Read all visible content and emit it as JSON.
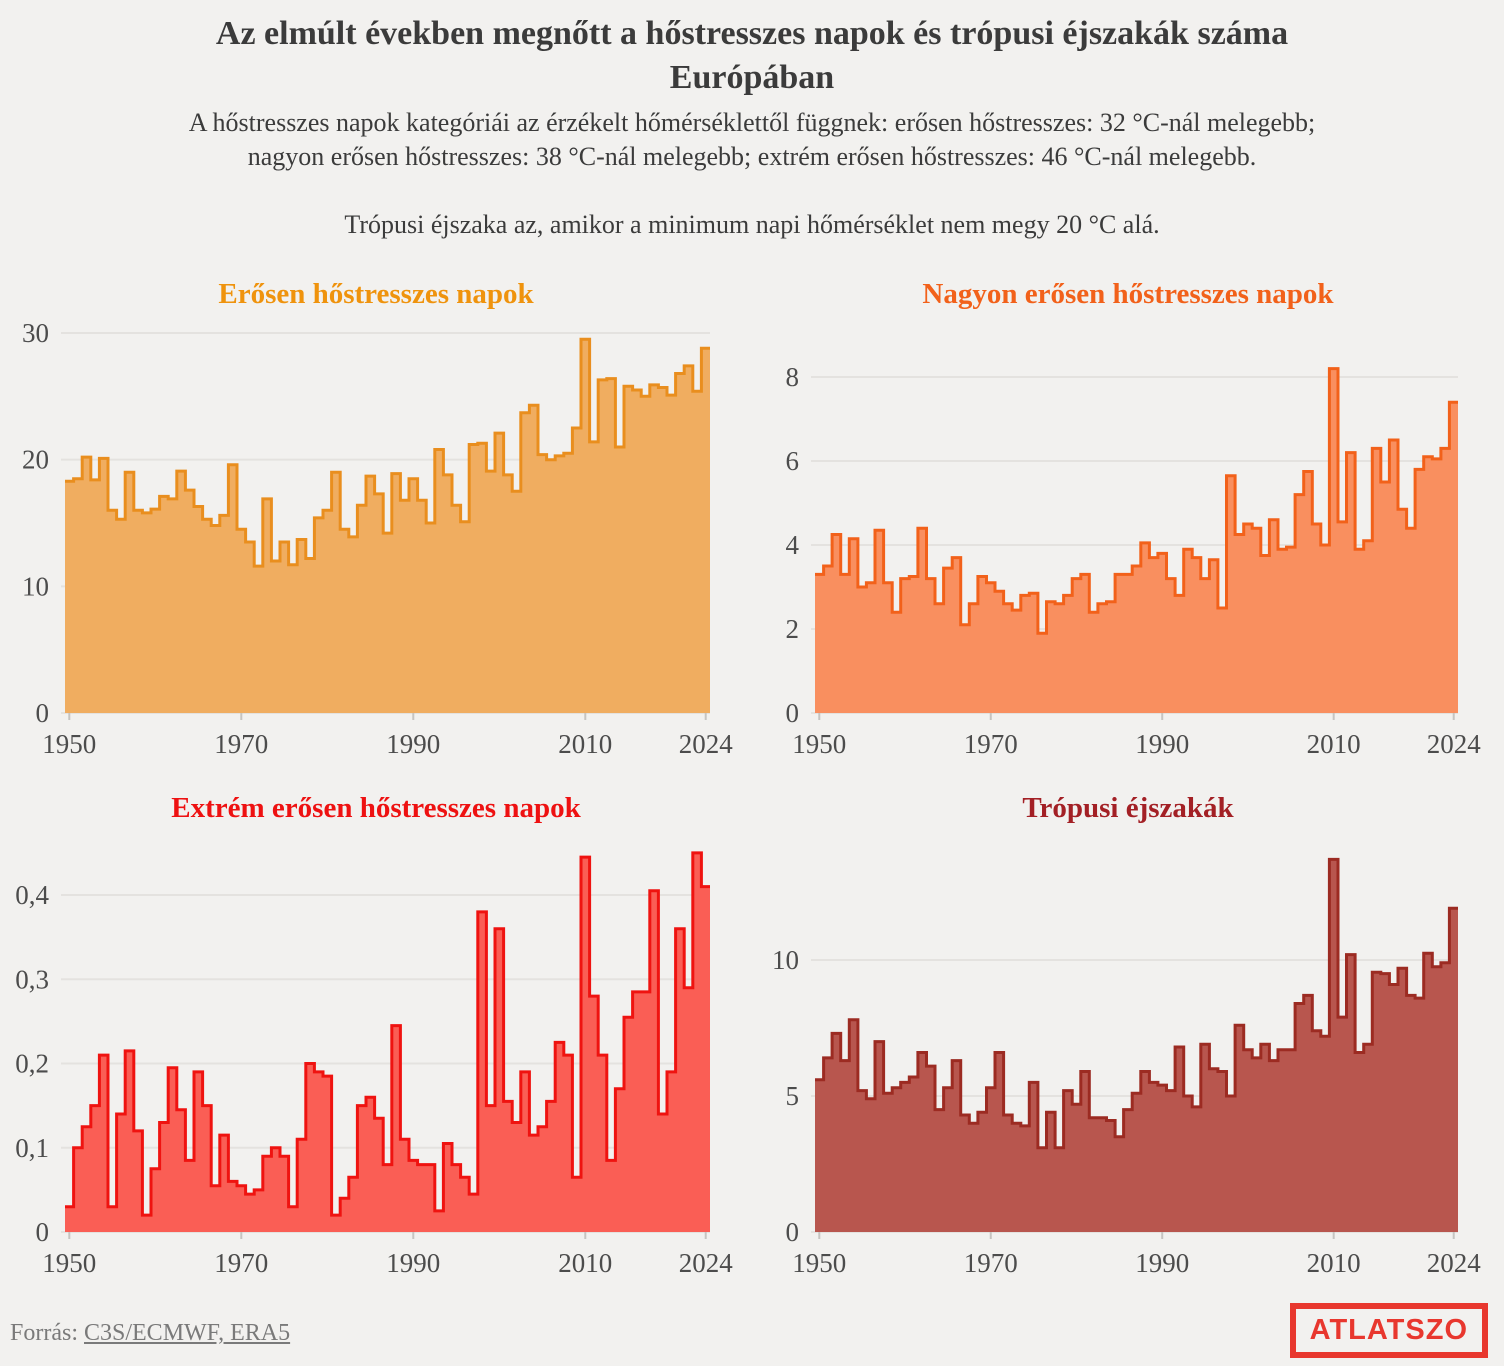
{
  "header": {
    "title": "Az elmúlt években megnőtt a hőstresszes napok és trópusi éjszakák száma\nEurópában",
    "subtitle": "A hőstresszes napok kategóriái az érzékelt hőmérséklettől függnek: erősen hőstresszes: 32 °C-nál melegebb;\nnagyon erősen hőstresszes: 38 °C-nál melegebb; extrém erősen hőstresszes: 46 °C-nál melegebb.",
    "definition": "Trópusi éjszaka az, amikor a minimum napi hőmérséklet nem megy 20 °C alá."
  },
  "footer": {
    "source_label": "Forrás: ",
    "source_link": "C3S/ECMWF, ERA5",
    "logo_text": "ATLATSZO",
    "logo_color": "#E8372E"
  },
  "colors": {
    "background": "#F2F1EF",
    "heading_text": "#3B3B3B",
    "axis_text": "#4C4C4C",
    "gridline": "#E4E2DF",
    "footer_text": "#7A7A7A"
  },
  "chart_data": [
    {
      "type": "area",
      "title": "Erősen hőstresszes napok",
      "title_color": "#EF930D",
      "stroke_color": "#E98E1E",
      "fill_color": "#F0AD60",
      "x_start_year": 1950,
      "x_end_year": 2024,
      "ylim": [
        0,
        30
      ],
      "grid": true,
      "legend": "none",
      "yticks": [
        {
          "value": 0,
          "label": "0"
        },
        {
          "value": 10,
          "label": "10"
        },
        {
          "value": 20,
          "label": "20"
        },
        {
          "value": 30,
          "label": "30"
        }
      ],
      "xticks": [
        {
          "year": 1950,
          "label": "1950"
        },
        {
          "year": 1970,
          "label": "1970"
        },
        {
          "year": 1990,
          "label": "1990"
        },
        {
          "year": 2010,
          "label": "2010"
        },
        {
          "year": 2024,
          "label": "2024"
        }
      ],
      "values": [
        18.3,
        18.5,
        20.2,
        18.4,
        20.1,
        16.0,
        15.3,
        19.0,
        16.0,
        15.8,
        16.1,
        17.1,
        16.9,
        19.1,
        17.6,
        16.3,
        15.3,
        14.8,
        15.6,
        19.6,
        14.5,
        13.5,
        11.6,
        16.9,
        12.0,
        13.5,
        11.7,
        13.7,
        12.2,
        15.4,
        16.0,
        19.0,
        14.5,
        13.9,
        16.4,
        18.7,
        17.3,
        14.2,
        18.9,
        16.8,
        18.5,
        16.8,
        15.0,
        20.8,
        18.8,
        16.4,
        15.1,
        21.2,
        21.3,
        19.1,
        22.1,
        18.8,
        17.5,
        23.7,
        24.3,
        20.4,
        20.0,
        20.3,
        20.5,
        22.5,
        29.5,
        21.4,
        26.3,
        26.4,
        21.0,
        25.8,
        25.5,
        25.0,
        25.9,
        25.7,
        25.1,
        26.8,
        27.4,
        25.4,
        28.8
      ]
    },
    {
      "type": "area",
      "title": "Nagyon erősen hőstresszes napok",
      "title_color": "#F2611A",
      "stroke_color": "#F2611A",
      "fill_color": "#F98F5F",
      "x_start_year": 1950,
      "x_end_year": 2024,
      "ylim": [
        0,
        8.6
      ],
      "grid": true,
      "legend": "none",
      "yticks": [
        {
          "value": 0,
          "label": "0"
        },
        {
          "value": 2,
          "label": "2"
        },
        {
          "value": 4,
          "label": "4"
        },
        {
          "value": 6,
          "label": "6"
        },
        {
          "value": 8,
          "label": "8"
        }
      ],
      "xticks": [
        {
          "year": 1950,
          "label": "1950"
        },
        {
          "year": 1970,
          "label": "1970"
        },
        {
          "year": 1990,
          "label": "1990"
        },
        {
          "year": 2010,
          "label": "2010"
        },
        {
          "year": 2024,
          "label": "2024"
        }
      ],
      "values": [
        3.3,
        3.5,
        4.25,
        3.3,
        4.15,
        3.0,
        3.1,
        4.35,
        3.1,
        2.4,
        3.2,
        3.25,
        4.4,
        3.2,
        2.6,
        3.45,
        3.7,
        2.1,
        2.6,
        3.25,
        3.1,
        2.9,
        2.6,
        2.45,
        2.8,
        2.85,
        1.9,
        2.65,
        2.6,
        2.8,
        3.2,
        3.3,
        2.4,
        2.6,
        2.65,
        3.3,
        3.3,
        3.5,
        4.05,
        3.7,
        3.8,
        3.2,
        2.8,
        3.9,
        3.7,
        3.2,
        3.65,
        2.5,
        5.65,
        4.25,
        4.5,
        4.4,
        3.75,
        4.6,
        3.9,
        3.95,
        5.2,
        5.75,
        4.5,
        4.0,
        8.2,
        4.55,
        6.2,
        3.9,
        4.1,
        6.3,
        5.5,
        6.5,
        4.85,
        4.4,
        5.8,
        6.1,
        6.05,
        6.3,
        7.4
      ]
    },
    {
      "type": "area",
      "title": "Extrém erősen hőstresszes napok",
      "title_color": "#EE1111",
      "stroke_color": "#EF1310",
      "fill_color": "#FA5E55",
      "x_start_year": 1950,
      "x_end_year": 2024,
      "ylim": [
        0,
        0.46
      ],
      "grid": true,
      "legend": "none",
      "yticks": [
        {
          "value": 0,
          "label": "0"
        },
        {
          "value": 0.1,
          "label": "0,1"
        },
        {
          "value": 0.2,
          "label": "0,2"
        },
        {
          "value": 0.3,
          "label": "0,3"
        },
        {
          "value": 0.4,
          "label": "0,4"
        }
      ],
      "xticks": [
        {
          "year": 1950,
          "label": "1950"
        },
        {
          "year": 1970,
          "label": "1970"
        },
        {
          "year": 1990,
          "label": "1990"
        },
        {
          "year": 2010,
          "label": "2010"
        },
        {
          "year": 2024,
          "label": "2024"
        }
      ],
      "values": [
        0.03,
        0.1,
        0.125,
        0.15,
        0.21,
        0.03,
        0.14,
        0.215,
        0.12,
        0.02,
        0.075,
        0.13,
        0.195,
        0.145,
        0.085,
        0.19,
        0.15,
        0.055,
        0.115,
        0.06,
        0.055,
        0.045,
        0.05,
        0.09,
        0.1,
        0.09,
        0.03,
        0.11,
        0.2,
        0.19,
        0.185,
        0.02,
        0.04,
        0.065,
        0.15,
        0.16,
        0.135,
        0.08,
        0.245,
        0.11,
        0.085,
        0.08,
        0.08,
        0.025,
        0.105,
        0.08,
        0.065,
        0.045,
        0.38,
        0.15,
        0.36,
        0.155,
        0.13,
        0.19,
        0.115,
        0.125,
        0.155,
        0.225,
        0.21,
        0.065,
        0.445,
        0.28,
        0.21,
        0.085,
        0.17,
        0.255,
        0.285,
        0.285,
        0.405,
        0.14,
        0.19,
        0.36,
        0.29,
        0.45,
        0.41
      ]
    },
    {
      "type": "area",
      "title": "Trópusi éjszakák",
      "title_color": "#A32025",
      "stroke_color": "#9C2B22",
      "fill_color": "#B8564E",
      "x_start_year": 1950,
      "x_end_year": 2024,
      "ylim": [
        0,
        14
      ],
      "grid": true,
      "legend": "none",
      "yticks": [
        {
          "value": 0,
          "label": "0"
        },
        {
          "value": 5,
          "label": "5"
        },
        {
          "value": 10,
          "label": "10"
        }
      ],
      "xticks": [
        {
          "year": 1950,
          "label": "1950"
        },
        {
          "year": 1970,
          "label": "1970"
        },
        {
          "year": 1990,
          "label": "1990"
        },
        {
          "year": 2010,
          "label": "2010"
        },
        {
          "year": 2024,
          "label": "2024"
        }
      ],
      "values": [
        5.6,
        6.4,
        7.3,
        6.3,
        7.8,
        5.2,
        4.9,
        7.0,
        5.1,
        5.3,
        5.5,
        5.7,
        6.6,
        6.1,
        4.5,
        5.3,
        6.3,
        4.3,
        4.0,
        4.4,
        5.3,
        6.6,
        4.3,
        4.0,
        3.9,
        5.5,
        3.1,
        4.4,
        3.1,
        5.2,
        4.7,
        5.9,
        4.2,
        4.2,
        4.1,
        3.5,
        4.5,
        5.1,
        5.9,
        5.5,
        5.4,
        5.2,
        6.8,
        5.0,
        4.6,
        6.9,
        6.0,
        5.9,
        5.0,
        7.6,
        6.7,
        6.4,
        6.9,
        6.3,
        6.7,
        6.7,
        8.4,
        8.7,
        7.4,
        7.2,
        13.7,
        7.9,
        10.2,
        6.6,
        6.9,
        9.55,
        9.5,
        9.1,
        9.7,
        8.7,
        8.6,
        10.25,
        9.75,
        9.9,
        11.9
      ]
    }
  ]
}
